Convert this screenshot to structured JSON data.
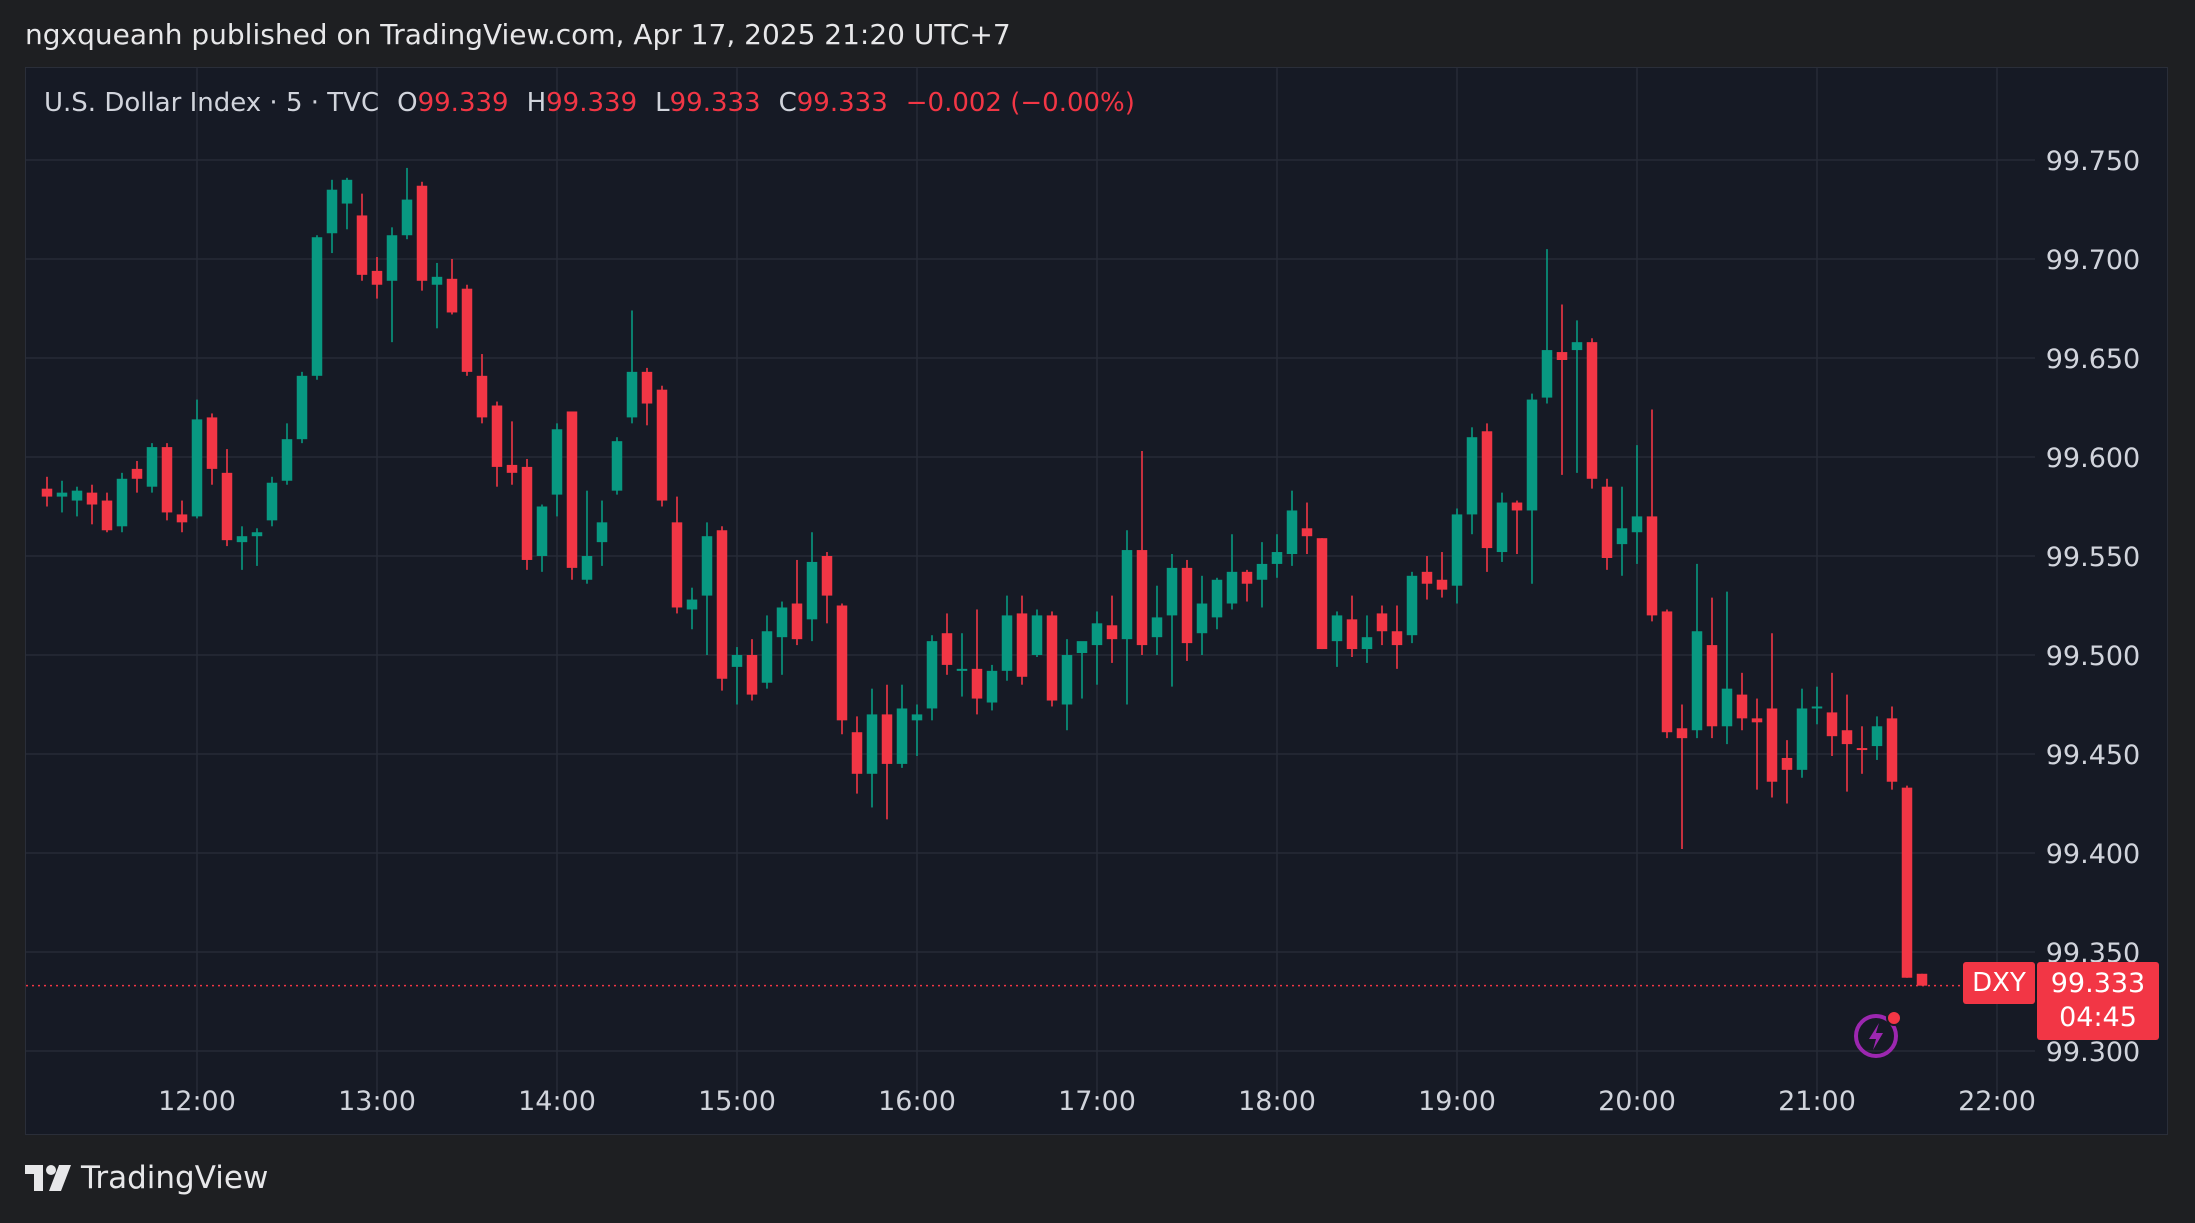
{
  "header": {
    "publisher_line": "ngxqueanh published on TradingView.com, Apr 17, 2025 21:20 UTC+7"
  },
  "legend": {
    "symbol": "U.S. Dollar Index · 5 · TVC",
    "open_label": "O",
    "open_value": "99.339",
    "high_label": "H",
    "high_value": "99.339",
    "low_label": "L",
    "low_value": "99.333",
    "close_label": "C",
    "close_value": "99.333",
    "change": "−0.002 (−0.00%)"
  },
  "price_badge": {
    "ticker": "DXY",
    "price": "99.333",
    "countdown": "04:45"
  },
  "footer": {
    "brand": "TradingView"
  },
  "colors": {
    "up": "#089981",
    "down": "#f23645",
    "background": "#161a25",
    "grid": "#262b37",
    "accent_purple": "#9c27b0"
  },
  "icons": {
    "flash": "lightning-bolt-icon",
    "logo": "tradingview-logo-icon"
  },
  "chart_data": {
    "type": "candlestick",
    "title": "U.S. Dollar Index · 5 · TVC",
    "interval": "5",
    "ylim": [
      99.285,
      99.79
    ],
    "y_ticks": [
      "99.750",
      "99.700",
      "99.650",
      "99.600",
      "99.550",
      "99.500",
      "99.450",
      "99.400",
      "99.350",
      "99.300"
    ],
    "x_ticks": [
      "12:00",
      "13:00",
      "14:00",
      "15:00",
      "16:00",
      "17:00",
      "18:00",
      "19:00",
      "20:00",
      "21:00",
      "22:00"
    ],
    "last_price": 99.333,
    "grid": true,
    "candles": [
      {
        "t": "11:10",
        "o": 99.584,
        "h": 99.59,
        "l": 99.575,
        "c": 99.58
      },
      {
        "t": "11:15",
        "o": 99.58,
        "h": 99.588,
        "l": 99.572,
        "c": 99.582
      },
      {
        "t": "11:20",
        "o": 99.578,
        "h": 99.585,
        "l": 99.57,
        "c": 99.583
      },
      {
        "t": "11:25",
        "o": 99.582,
        "h": 99.586,
        "l": 99.566,
        "c": 99.576
      },
      {
        "t": "11:30",
        "o": 99.578,
        "h": 99.582,
        "l": 99.562,
        "c": 99.563
      },
      {
        "t": "11:35",
        "o": 99.565,
        "h": 99.592,
        "l": 99.562,
        "c": 99.589
      },
      {
        "t": "11:40",
        "o": 99.594,
        "h": 99.598,
        "l": 99.582,
        "c": 99.589
      },
      {
        "t": "11:45",
        "o": 99.585,
        "h": 99.607,
        "l": 99.582,
        "c": 99.605
      },
      {
        "t": "11:50",
        "o": 99.605,
        "h": 99.607,
        "l": 99.568,
        "c": 99.572
      },
      {
        "t": "11:55",
        "o": 99.571,
        "h": 99.578,
        "l": 99.562,
        "c": 99.567
      },
      {
        "t": "12:00",
        "o": 99.57,
        "h": 99.629,
        "l": 99.569,
        "c": 99.619
      },
      {
        "t": "12:05",
        "o": 99.62,
        "h": 99.622,
        "l": 99.586,
        "c": 99.594
      },
      {
        "t": "12:10",
        "o": 99.592,
        "h": 99.604,
        "l": 99.555,
        "c": 99.558
      },
      {
        "t": "12:15",
        "o": 99.557,
        "h": 99.565,
        "l": 99.543,
        "c": 99.56
      },
      {
        "t": "12:20",
        "o": 99.56,
        "h": 99.564,
        "l": 99.545,
        "c": 99.562
      },
      {
        "t": "12:25",
        "o": 99.568,
        "h": 99.59,
        "l": 99.565,
        "c": 99.587
      },
      {
        "t": "12:30",
        "o": 99.588,
        "h": 99.617,
        "l": 99.586,
        "c": 99.609
      },
      {
        "t": "12:35",
        "o": 99.609,
        "h": 99.643,
        "l": 99.607,
        "c": 99.641
      },
      {
        "t": "12:40",
        "o": 99.641,
        "h": 99.712,
        "l": 99.639,
        "c": 99.711
      },
      {
        "t": "12:45",
        "o": 99.713,
        "h": 99.74,
        "l": 99.703,
        "c": 99.735
      },
      {
        "t": "12:50",
        "o": 99.728,
        "h": 99.741,
        "l": 99.715,
        "c": 99.74
      },
      {
        "t": "12:55",
        "o": 99.722,
        "h": 99.733,
        "l": 99.689,
        "c": 99.692
      },
      {
        "t": "13:00",
        "o": 99.694,
        "h": 99.701,
        "l": 99.68,
        "c": 99.687
      },
      {
        "t": "13:05",
        "o": 99.689,
        "h": 99.716,
        "l": 99.658,
        "c": 99.712
      },
      {
        "t": "13:10",
        "o": 99.712,
        "h": 99.746,
        "l": 99.71,
        "c": 99.73
      },
      {
        "t": "13:15",
        "o": 99.737,
        "h": 99.739,
        "l": 99.684,
        "c": 99.689
      },
      {
        "t": "13:20",
        "o": 99.687,
        "h": 99.698,
        "l": 99.665,
        "c": 99.691
      },
      {
        "t": "13:25",
        "o": 99.69,
        "h": 99.7,
        "l": 99.672,
        "c": 99.673
      },
      {
        "t": "13:30",
        "o": 99.685,
        "h": 99.687,
        "l": 99.641,
        "c": 99.643
      },
      {
        "t": "13:35",
        "o": 99.641,
        "h": 99.652,
        "l": 99.617,
        "c": 99.62
      },
      {
        "t": "13:40",
        "o": 99.626,
        "h": 99.628,
        "l": 99.585,
        "c": 99.595
      },
      {
        "t": "13:45",
        "o": 99.596,
        "h": 99.618,
        "l": 99.586,
        "c": 99.592
      },
      {
        "t": "13:50",
        "o": 99.595,
        "h": 99.599,
        "l": 99.543,
        "c": 99.548
      },
      {
        "t": "13:55",
        "o": 99.55,
        "h": 99.576,
        "l": 99.542,
        "c": 99.575
      },
      {
        "t": "14:00",
        "o": 99.581,
        "h": 99.617,
        "l": 99.57,
        "c": 99.614
      },
      {
        "t": "14:05",
        "o": 99.623,
        "h": 99.623,
        "l": 99.538,
        "c": 99.544
      },
      {
        "t": "14:10",
        "o": 99.538,
        "h": 99.583,
        "l": 99.536,
        "c": 99.55
      },
      {
        "t": "14:15",
        "o": 99.557,
        "h": 99.578,
        "l": 99.545,
        "c": 99.567
      },
      {
        "t": "14:20",
        "o": 99.583,
        "h": 99.61,
        "l": 99.581,
        "c": 99.608
      },
      {
        "t": "14:25",
        "o": 99.62,
        "h": 99.674,
        "l": 99.617,
        "c": 99.643
      },
      {
        "t": "14:30",
        "o": 99.643,
        "h": 99.645,
        "l": 99.616,
        "c": 99.627
      },
      {
        "t": "14:35",
        "o": 99.634,
        "h": 99.636,
        "l": 99.575,
        "c": 99.578
      },
      {
        "t": "14:40",
        "o": 99.567,
        "h": 99.58,
        "l": 99.521,
        "c": 99.524
      },
      {
        "t": "14:45",
        "o": 99.523,
        "h": 99.534,
        "l": 99.513,
        "c": 99.528
      },
      {
        "t": "14:50",
        "o": 99.53,
        "h": 99.567,
        "l": 99.5,
        "c": 99.56
      },
      {
        "t": "14:55",
        "o": 99.563,
        "h": 99.565,
        "l": 99.482,
        "c": 99.488
      },
      {
        "t": "15:00",
        "o": 99.494,
        "h": 99.504,
        "l": 99.475,
        "c": 99.5
      },
      {
        "t": "15:05",
        "o": 99.5,
        "h": 99.508,
        "l": 99.477,
        "c": 99.48
      },
      {
        "t": "15:10",
        "o": 99.486,
        "h": 99.52,
        "l": 99.483,
        "c": 99.512
      },
      {
        "t": "15:15",
        "o": 99.509,
        "h": 99.527,
        "l": 99.49,
        "c": 99.524
      },
      {
        "t": "15:20",
        "o": 99.526,
        "h": 99.548,
        "l": 99.505,
        "c": 99.508
      },
      {
        "t": "15:25",
        "o": 99.518,
        "h": 99.562,
        "l": 99.507,
        "c": 99.547
      },
      {
        "t": "15:30",
        "o": 99.55,
        "h": 99.552,
        "l": 99.516,
        "c": 99.53
      },
      {
        "t": "15:35",
        "o": 99.525,
        "h": 99.526,
        "l": 99.46,
        "c": 99.467
      },
      {
        "t": "15:40",
        "o": 99.461,
        "h": 99.469,
        "l": 99.43,
        "c": 99.44
      },
      {
        "t": "15:45",
        "o": 99.44,
        "h": 99.483,
        "l": 99.423,
        "c": 99.47
      },
      {
        "t": "15:50",
        "o": 99.47,
        "h": 99.485,
        "l": 99.417,
        "c": 99.445
      },
      {
        "t": "15:55",
        "o": 99.445,
        "h": 99.485,
        "l": 99.443,
        "c": 99.473
      },
      {
        "t": "16:00",
        "o": 99.467,
        "h": 99.475,
        "l": 99.449,
        "c": 99.47
      },
      {
        "t": "16:05",
        "o": 99.473,
        "h": 99.51,
        "l": 99.467,
        "c": 99.507
      },
      {
        "t": "16:10",
        "o": 99.511,
        "h": 99.521,
        "l": 99.49,
        "c": 99.495
      },
      {
        "t": "16:15",
        "o": 99.493,
        "h": 99.511,
        "l": 99.479,
        "c": 99.493
      },
      {
        "t": "16:20",
        "o": 99.493,
        "h": 99.523,
        "l": 99.47,
        "c": 99.478
      },
      {
        "t": "16:25",
        "o": 99.476,
        "h": 99.495,
        "l": 99.472,
        "c": 99.492
      },
      {
        "t": "16:30",
        "o": 99.492,
        "h": 99.53,
        "l": 99.487,
        "c": 99.52
      },
      {
        "t": "16:35",
        "o": 99.521,
        "h": 99.53,
        "l": 99.485,
        "c": 99.489
      },
      {
        "t": "16:40",
        "o": 99.5,
        "h": 99.523,
        "l": 99.499,
        "c": 99.52
      },
      {
        "t": "16:45",
        "o": 99.52,
        "h": 99.522,
        "l": 99.474,
        "c": 99.477
      },
      {
        "t": "16:50",
        "o": 99.475,
        "h": 99.508,
        "l": 99.462,
        "c": 99.5
      },
      {
        "t": "16:55",
        "o": 99.501,
        "h": 99.505,
        "l": 99.478,
        "c": 99.507
      },
      {
        "t": "17:00",
        "o": 99.505,
        "h": 99.522,
        "l": 99.485,
        "c": 99.516
      },
      {
        "t": "17:05",
        "o": 99.515,
        "h": 99.53,
        "l": 99.496,
        "c": 99.508
      },
      {
        "t": "17:10",
        "o": 99.508,
        "h": 99.563,
        "l": 99.475,
        "c": 99.553
      },
      {
        "t": "17:15",
        "o": 99.553,
        "h": 99.603,
        "l": 99.5,
        "c": 99.505
      },
      {
        "t": "17:20",
        "o": 99.509,
        "h": 99.535,
        "l": 99.5,
        "c": 99.519
      },
      {
        "t": "17:25",
        "o": 99.52,
        "h": 99.551,
        "l": 99.484,
        "c": 99.544
      },
      {
        "t": "17:30",
        "o": 99.544,
        "h": 99.548,
        "l": 99.497,
        "c": 99.506
      },
      {
        "t": "17:35",
        "o": 99.511,
        "h": 99.54,
        "l": 99.5,
        "c": 99.526
      },
      {
        "t": "17:40",
        "o": 99.519,
        "h": 99.539,
        "l": 99.513,
        "c": 99.538
      },
      {
        "t": "17:45",
        "o": 99.526,
        "h": 99.561,
        "l": 99.523,
        "c": 99.542
      },
      {
        "t": "17:50",
        "o": 99.542,
        "h": 99.543,
        "l": 99.527,
        "c": 99.536
      },
      {
        "t": "17:55",
        "o": 99.538,
        "h": 99.557,
        "l": 99.524,
        "c": 99.546
      },
      {
        "t": "18:00",
        "o": 99.546,
        "h": 99.561,
        "l": 99.539,
        "c": 99.552
      },
      {
        "t": "18:05",
        "o": 99.551,
        "h": 99.583,
        "l": 99.545,
        "c": 99.573
      },
      {
        "t": "18:10",
        "o": 99.564,
        "h": 99.577,
        "l": 99.551,
        "c": 99.56
      },
      {
        "t": "18:15",
        "o": 99.559,
        "h": 99.559,
        "l": 99.503,
        "c": 99.503
      },
      {
        "t": "18:20",
        "o": 99.507,
        "h": 99.522,
        "l": 99.494,
        "c": 99.52
      },
      {
        "t": "18:25",
        "o": 99.518,
        "h": 99.53,
        "l": 99.499,
        "c": 99.503
      },
      {
        "t": "18:30",
        "o": 99.503,
        "h": 99.52,
        "l": 99.496,
        "c": 99.509
      },
      {
        "t": "18:35",
        "o": 99.521,
        "h": 99.525,
        "l": 99.505,
        "c": 99.512
      },
      {
        "t": "18:40",
        "o": 99.512,
        "h": 99.525,
        "l": 99.493,
        "c": 99.505
      },
      {
        "t": "18:45",
        "o": 99.51,
        "h": 99.542,
        "l": 99.506,
        "c": 99.54
      },
      {
        "t": "18:50",
        "o": 99.542,
        "h": 99.55,
        "l": 99.528,
        "c": 99.536
      },
      {
        "t": "18:55",
        "o": 99.538,
        "h": 99.552,
        "l": 99.529,
        "c": 99.533
      },
      {
        "t": "19:00",
        "o": 99.535,
        "h": 99.574,
        "l": 99.526,
        "c": 99.571
      },
      {
        "t": "19:05",
        "o": 99.571,
        "h": 99.615,
        "l": 99.561,
        "c": 99.61
      },
      {
        "t": "19:10",
        "o": 99.613,
        "h": 99.617,
        "l": 99.542,
        "c": 99.554
      },
      {
        "t": "19:15",
        "o": 99.552,
        "h": 99.582,
        "l": 99.547,
        "c": 99.577
      },
      {
        "t": "19:20",
        "o": 99.577,
        "h": 99.578,
        "l": 99.551,
        "c": 99.573
      },
      {
        "t": "19:25",
        "o": 99.573,
        "h": 99.632,
        "l": 99.536,
        "c": 99.629
      },
      {
        "t": "19:30",
        "o": 99.63,
        "h": 99.705,
        "l": 99.627,
        "c": 99.654
      },
      {
        "t": "19:35",
        "o": 99.653,
        "h": 99.677,
        "l": 99.591,
        "c": 99.649
      },
      {
        "t": "19:40",
        "o": 99.654,
        "h": 99.669,
        "l": 99.592,
        "c": 99.658
      },
      {
        "t": "19:45",
        "o": 99.658,
        "h": 99.66,
        "l": 99.584,
        "c": 99.589
      },
      {
        "t": "19:50",
        "o": 99.585,
        "h": 99.589,
        "l": 99.543,
        "c": 99.549
      },
      {
        "t": "19:55",
        "o": 99.556,
        "h": 99.585,
        "l": 99.54,
        "c": 99.564
      },
      {
        "t": "20:00",
        "o": 99.562,
        "h": 99.606,
        "l": 99.546,
        "c": 99.57
      },
      {
        "t": "20:05",
        "o": 99.57,
        "h": 99.624,
        "l": 99.517,
        "c": 99.52
      },
      {
        "t": "20:10",
        "o": 99.522,
        "h": 99.523,
        "l": 99.458,
        "c": 99.461
      },
      {
        "t": "20:15",
        "o": 99.463,
        "h": 99.475,
        "l": 99.402,
        "c": 99.458
      },
      {
        "t": "20:20",
        "o": 99.462,
        "h": 99.546,
        "l": 99.458,
        "c": 99.512
      },
      {
        "t": "20:25",
        "o": 99.505,
        "h": 99.529,
        "l": 99.458,
        "c": 99.464
      },
      {
        "t": "20:30",
        "o": 99.464,
        "h": 99.532,
        "l": 99.455,
        "c": 99.483
      },
      {
        "t": "20:35",
        "o": 99.48,
        "h": 99.491,
        "l": 99.462,
        "c": 99.468
      },
      {
        "t": "20:40",
        "o": 99.468,
        "h": 99.478,
        "l": 99.432,
        "c": 99.466
      },
      {
        "t": "20:45",
        "o": 99.473,
        "h": 99.511,
        "l": 99.428,
        "c": 99.436
      },
      {
        "t": "20:50",
        "o": 99.448,
        "h": 99.457,
        "l": 99.425,
        "c": 99.442
      },
      {
        "t": "20:55",
        "o": 99.442,
        "h": 99.483,
        "l": 99.438,
        "c": 99.473
      },
      {
        "t": "21:00",
        "o": 99.474,
        "h": 99.484,
        "l": 99.465,
        "c": 99.474
      },
      {
        "t": "21:05",
        "o": 99.471,
        "h": 99.491,
        "l": 99.449,
        "c": 99.459
      },
      {
        "t": "21:10",
        "o": 99.462,
        "h": 99.48,
        "l": 99.431,
        "c": 99.455
      },
      {
        "t": "21:15",
        "o": 99.453,
        "h": 99.464,
        "l": 99.44,
        "c": 99.452
      },
      {
        "t": "21:20",
        "o": 99.454,
        "h": 99.469,
        "l": 99.447,
        "c": 99.464
      },
      {
        "t": "21:25",
        "o": 99.468,
        "h": 99.474,
        "l": 99.432,
        "c": 99.436
      },
      {
        "t": "21:30",
        "o": 99.433,
        "h": 99.434,
        "l": 99.337,
        "c": 99.337
      },
      {
        "t": "21:35",
        "o": 99.339,
        "h": 99.339,
        "l": 99.333,
        "c": 99.333
      }
    ]
  }
}
